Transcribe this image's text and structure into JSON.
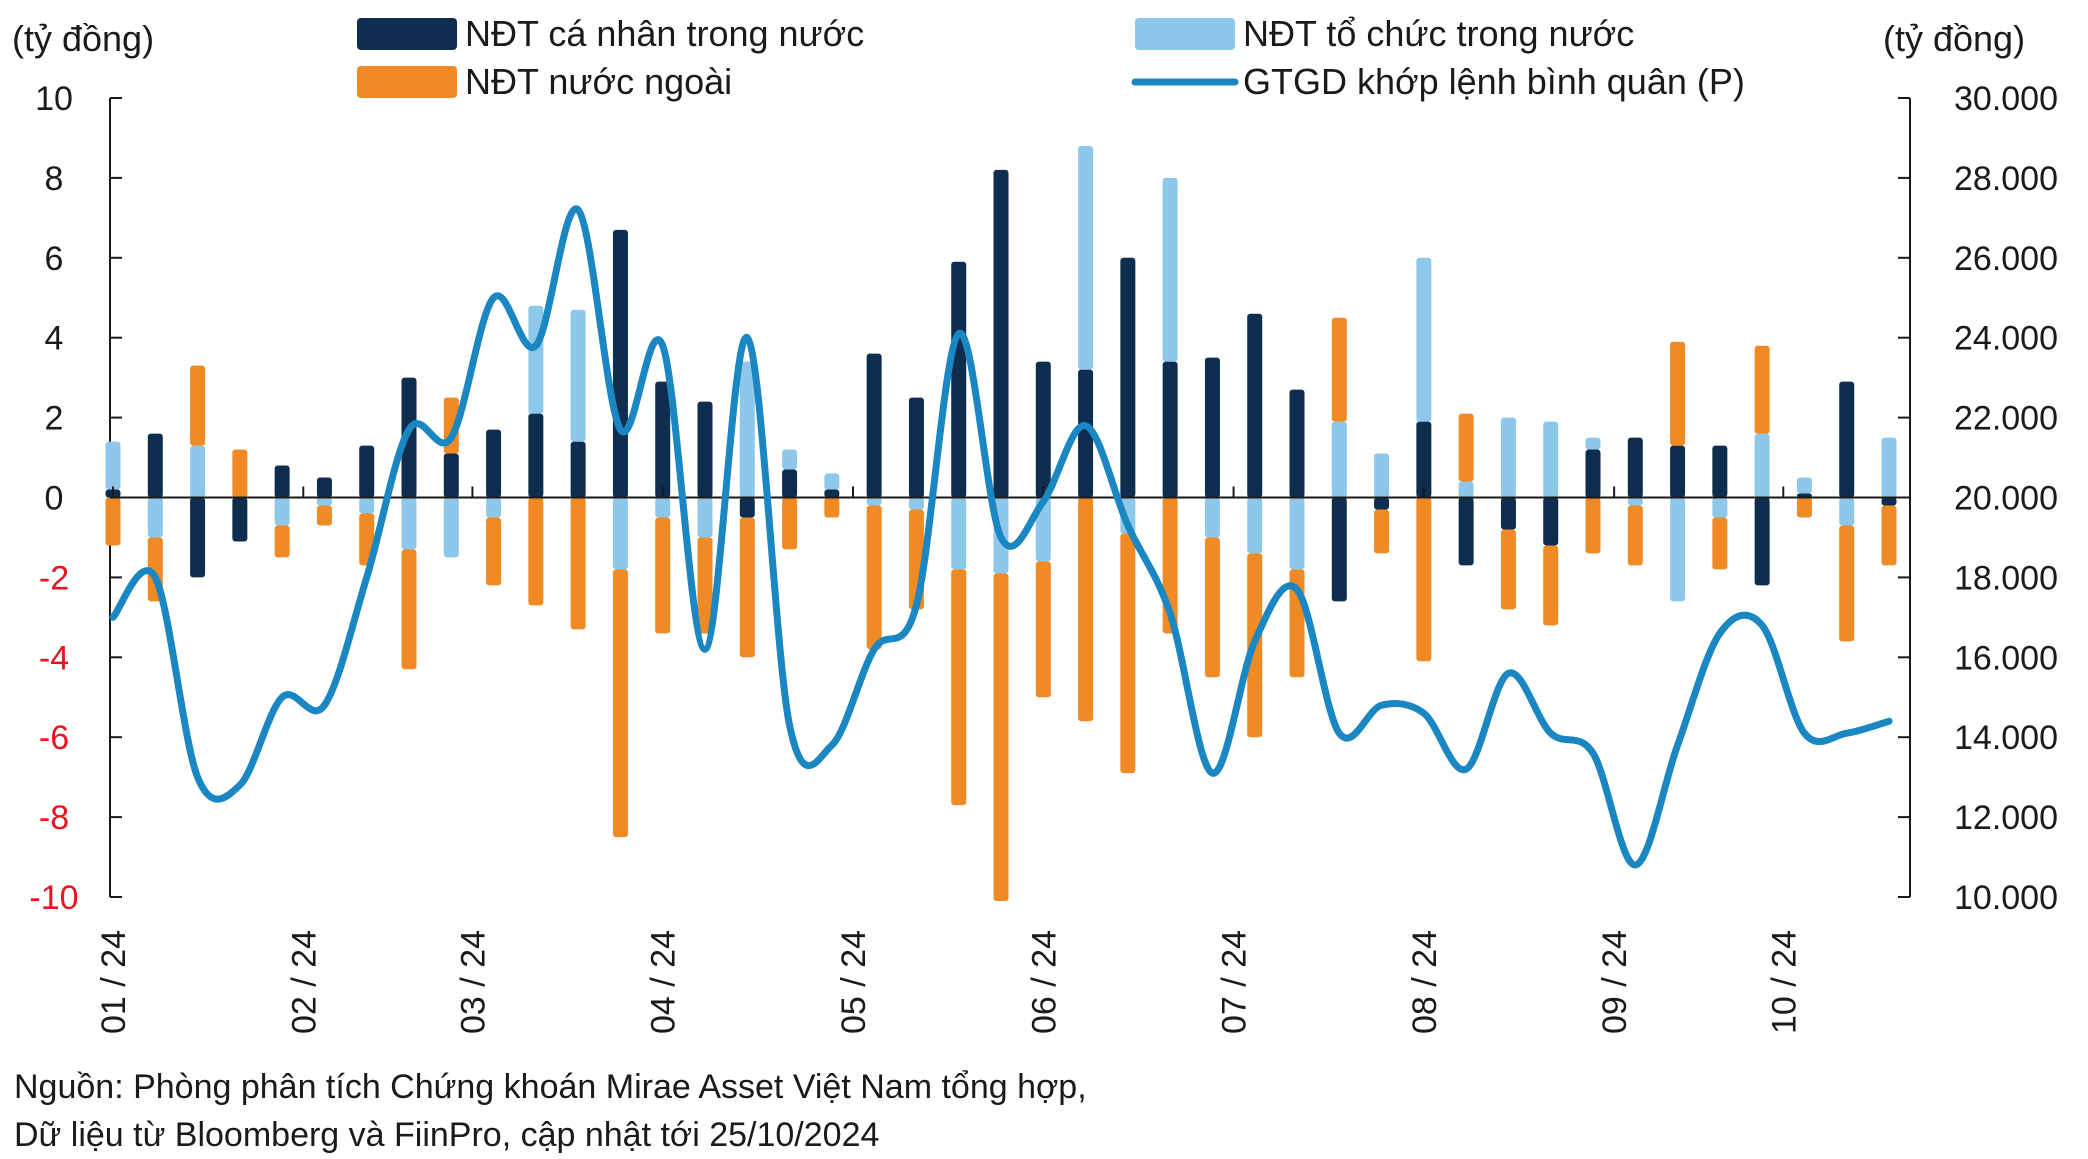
{
  "chart_data": {
    "type": "bar",
    "left_axis_title": "(tỷ đồng)",
    "right_axis_title": "(tỷ đồng)",
    "y_left": {
      "min": -10,
      "max": 10,
      "ticks": [
        10,
        8,
        6,
        4,
        2,
        0,
        -2,
        -4,
        -6,
        -8,
        -10
      ],
      "tick_labels": [
        "10",
        "8",
        "6",
        "4",
        "2",
        "0",
        "-2",
        "-4",
        "-6",
        "-8",
        "-10"
      ]
    },
    "y_right": {
      "min": 10000,
      "max": 30000,
      "ticks": [
        30000,
        28000,
        26000,
        24000,
        22000,
        20000,
        18000,
        16000,
        14000,
        12000,
        10000
      ],
      "tick_labels": [
        "30.000",
        "28.000",
        "26.000",
        "24.000",
        "22.000",
        "20.000",
        "18.000",
        "16.000",
        "14.000",
        "12.000",
        "10.000"
      ]
    },
    "x_labels": [
      {
        "label": "01 / 24",
        "week": 0
      },
      {
        "label": "02 / 24",
        "week": 4.5
      },
      {
        "label": "03 / 24",
        "week": 8.5
      },
      {
        "label": "04 / 24",
        "week": 13
      },
      {
        "label": "05 / 24",
        "week": 17.5
      },
      {
        "label": "06 / 24",
        "week": 22
      },
      {
        "label": "07 / 24",
        "week": 26.5
      },
      {
        "label": "08 / 24",
        "week": 31
      },
      {
        "label": "09 / 24",
        "week": 35.5
      },
      {
        "label": "10 / 24",
        "week": 39.5
      }
    ],
    "legend": {
      "individual": "NĐT cá nhân trong nước",
      "institutional": "NĐT tổ chức trong nước",
      "foreign": "NĐT nước ngoài",
      "turnover": "GTGD khớp lệnh bình quân (P)"
    },
    "colors": {
      "individual": "#0e2d4f",
      "institutional": "#8dc8ea",
      "foreign": "#f08a24",
      "turnover": "#1b87c2",
      "negative_tick": "#e8141e"
    },
    "series": {
      "individual": [
        0.2,
        1.6,
        -2.0,
        -1.1,
        0.8,
        0.5,
        1.3,
        3.0,
        1.1,
        1.7,
        2.1,
        1.4,
        6.7,
        2.9,
        2.4,
        -0.5,
        0.7,
        0.2,
        3.6,
        2.5,
        5.9,
        8.2,
        3.4,
        3.2,
        6.0,
        3.4,
        3.5,
        4.6,
        2.7,
        -2.6,
        -0.3,
        1.9,
        -1.7,
        -0.8,
        -1.2,
        1.2,
        1.5,
        1.3,
        1.3,
        -2.2,
        0.1,
        2.9,
        -0.2
      ],
      "institutional": [
        1.2,
        -1.0,
        1.3,
        0.0,
        -0.7,
        -0.2,
        -0.4,
        -1.3,
        -1.5,
        -0.5,
        2.7,
        3.3,
        -1.8,
        -0.5,
        -1.0,
        3.4,
        0.5,
        0.4,
        -0.2,
        -0.3,
        -1.8,
        -1.9,
        -1.6,
        5.6,
        -0.9,
        4.6,
        -1.0,
        -1.4,
        -1.8,
        1.9,
        1.1,
        4.1,
        0.4,
        2.0,
        1.9,
        0.3,
        -0.2,
        -2.6,
        -0.5,
        1.6,
        0.4,
        -0.7,
        1.5
      ],
      "foreign": [
        -1.2,
        -1.6,
        2.0,
        1.2,
        -0.8,
        -0.5,
        -1.3,
        -3.0,
        1.4,
        -1.7,
        -2.7,
        -3.3,
        -6.7,
        -2.9,
        -2.4,
        -3.5,
        -1.3,
        -0.5,
        -3.6,
        -2.5,
        -5.9,
        -8.2,
        -3.4,
        -5.6,
        -6.0,
        -3.4,
        -3.5,
        -4.6,
        -2.7,
        2.6,
        -1.1,
        -4.1,
        1.7,
        -2.0,
        -2.0,
        -1.4,
        -1.5,
        2.6,
        -1.3,
        2.2,
        -0.5,
        -2.9,
        -1.5
      ],
      "turnover": [
        17000,
        18000,
        13000,
        12800,
        15000,
        14800,
        18000,
        21700,
        21500,
        25000,
        23800,
        27200,
        21700,
        23800,
        16200,
        24000,
        14300,
        13800,
        16200,
        17300,
        24100,
        19000,
        19900,
        21800,
        19300,
        17100,
        13100,
        16400,
        17700,
        14100,
        14800,
        14600,
        13200,
        15600,
        14100,
        13600,
        10800,
        13800,
        16600,
        16800,
        14100,
        14100,
        14400
      ]
    },
    "source_lines": [
      "Nguồn: Phòng phân tích Chứng khoán Mirae Asset Việt Nam tổng hợp,",
      "Dữ liệu từ Bloomberg và FiinPro, cập nhật tới 25/10/2024"
    ]
  }
}
